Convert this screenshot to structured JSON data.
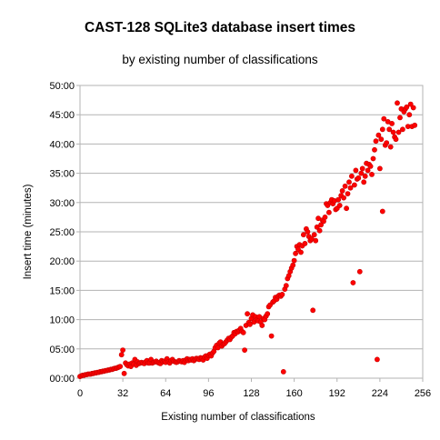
{
  "chart_data": {
    "type": "scatter",
    "title": "CAST-128 SQLite3 database insert times",
    "subtitle": "by existing number of classifications",
    "xlabel": "Existing number of classifications",
    "ylabel": "Insert time (minutes)",
    "xlim": [
      0,
      256
    ],
    "ylim": [
      0,
      50
    ],
    "x_ticks": [
      0,
      32,
      64,
      96,
      128,
      160,
      192,
      224,
      256
    ],
    "y_ticks": [
      0,
      5,
      10,
      15,
      20,
      25,
      30,
      35,
      40,
      45,
      50
    ],
    "y_tick_labels": [
      "00:00",
      "05:00",
      "10:00",
      "15:00",
      "20:00",
      "25:00",
      "30:00",
      "35:00",
      "40:00",
      "45:00",
      "50:00"
    ],
    "grid": "horizontal",
    "legend": "none",
    "marker_color": "#ff0000",
    "marker_edge_color": "#c80000",
    "series": [
      {
        "points": [
          [
            0,
            0.3
          ],
          [
            1,
            0.4
          ],
          [
            2,
            0.5
          ],
          [
            3,
            0.5
          ],
          [
            4,
            0.6
          ],
          [
            5,
            0.6
          ],
          [
            6,
            0.7
          ],
          [
            7,
            0.7
          ],
          [
            8,
            0.7
          ],
          [
            9,
            0.8
          ],
          [
            10,
            0.8
          ],
          [
            11,
            0.9
          ],
          [
            12,
            0.9
          ],
          [
            13,
            1.0
          ],
          [
            14,
            1.0
          ],
          [
            15,
            1.1
          ],
          [
            16,
            1.1
          ],
          [
            17,
            1.2
          ],
          [
            18,
            1.2
          ],
          [
            19,
            1.3
          ],
          [
            20,
            1.3
          ],
          [
            21,
            1.4
          ],
          [
            22,
            1.4
          ],
          [
            23,
            1.5
          ],
          [
            24,
            1.5
          ],
          [
            25,
            1.6
          ],
          [
            26,
            1.7
          ],
          [
            27,
            1.7
          ],
          [
            28,
            1.8
          ],
          [
            29,
            1.9
          ],
          [
            30,
            2.0
          ],
          [
            31,
            4.0
          ],
          [
            32,
            4.8
          ],
          [
            33,
            0.8
          ],
          [
            34,
            2.6
          ],
          [
            35,
            2.3
          ],
          [
            36,
            2.1
          ],
          [
            37,
            2.4
          ],
          [
            38,
            2.0
          ],
          [
            39,
            2.6
          ],
          [
            40,
            2.4
          ],
          [
            41,
            3.2
          ],
          [
            42,
            2.2
          ],
          [
            43,
            2.8
          ],
          [
            44,
            2.5
          ],
          [
            45,
            2.6
          ],
          [
            46,
            2.7
          ],
          [
            47,
            2.6
          ],
          [
            48,
            2.5
          ],
          [
            49,
            2.8
          ],
          [
            50,
            3.0
          ],
          [
            51,
            2.6
          ],
          [
            52,
            2.6
          ],
          [
            53,
            3.2
          ],
          [
            54,
            2.6
          ],
          [
            55,
            2.7
          ],
          [
            56,
            2.8
          ],
          [
            57,
            2.9
          ],
          [
            58,
            2.7
          ],
          [
            59,
            2.6
          ],
          [
            60,
            2.5
          ],
          [
            61,
            3.0
          ],
          [
            62,
            2.8
          ],
          [
            63,
            2.9
          ],
          [
            64,
            2.7
          ],
          [
            65,
            3.3
          ],
          [
            66,
            2.8
          ],
          [
            67,
            2.6
          ],
          [
            68,
            3.0
          ],
          [
            69,
            3.2
          ],
          [
            70,
            2.9
          ],
          [
            71,
            2.8
          ],
          [
            72,
            2.7
          ],
          [
            73,
            2.8
          ],
          [
            74,
            3.0
          ],
          [
            75,
            2.9
          ],
          [
            76,
            2.8
          ],
          [
            77,
            3.0
          ],
          [
            78,
            2.7
          ],
          [
            79,
            3.1
          ],
          [
            80,
            3.3
          ],
          [
            81,
            3.0
          ],
          [
            82,
            3.2
          ],
          [
            83,
            3.1
          ],
          [
            84,
            3.3
          ],
          [
            85,
            3.0
          ],
          [
            86,
            3.2
          ],
          [
            87,
            3.4
          ],
          [
            88,
            3.3
          ],
          [
            89,
            3.2
          ],
          [
            90,
            3.5
          ],
          [
            91,
            3.4
          ],
          [
            92,
            3.1
          ],
          [
            93,
            3.6
          ],
          [
            94,
            3.8
          ],
          [
            95,
            3.4
          ],
          [
            96,
            3.9
          ],
          [
            97,
            4.1
          ],
          [
            98,
            3.8
          ],
          [
            99,
            4.3
          ],
          [
            100,
            4.6
          ],
          [
            101,
            5.2
          ],
          [
            102,
            5.6
          ],
          [
            103,
            5.2
          ],
          [
            104,
            6.0
          ],
          [
            105,
            6.2
          ],
          [
            106,
            5.5
          ],
          [
            107,
            5.8
          ],
          [
            108,
            5.9
          ],
          [
            109,
            6.2
          ],
          [
            110,
            6.5
          ],
          [
            111,
            6.8
          ],
          [
            112,
            6.6
          ],
          [
            113,
            7.0
          ],
          [
            114,
            7.2
          ],
          [
            115,
            7.8
          ],
          [
            116,
            7.6
          ],
          [
            117,
            8.0
          ],
          [
            118,
            7.9
          ],
          [
            119,
            8.2
          ],
          [
            120,
            8.5
          ],
          [
            121,
            8.0
          ],
          [
            122,
            7.8
          ],
          [
            123,
            4.8
          ],
          [
            124,
            9.0
          ],
          [
            125,
            11.0
          ],
          [
            126,
            9.5
          ],
          [
            127,
            9.2
          ],
          [
            128,
            10.2
          ],
          [
            129,
            10.8
          ],
          [
            130,
            9.6
          ],
          [
            131,
            10.5
          ],
          [
            132,
            10.0
          ],
          [
            133,
            9.8
          ],
          [
            134,
            10.5
          ],
          [
            135,
            9.6
          ],
          [
            136,
            9.0
          ],
          [
            137,
            10.2
          ],
          [
            138,
            10.0
          ],
          [
            139,
            10.6
          ],
          [
            140,
            11.0
          ],
          [
            141,
            12.2
          ],
          [
            142,
            12.5
          ],
          [
            143,
            7.2
          ],
          [
            144,
            13.0
          ],
          [
            145,
            13.2
          ],
          [
            146,
            13.8
          ],
          [
            147,
            13.5
          ],
          [
            148,
            14.0
          ],
          [
            149,
            14.2
          ],
          [
            150,
            14.0
          ],
          [
            151,
            14.3
          ],
          [
            152,
            1.1
          ],
          [
            153,
            15.2
          ],
          [
            154,
            15.8
          ],
          [
            155,
            17.0
          ],
          [
            156,
            17.5
          ],
          [
            157,
            18.2
          ],
          [
            158,
            18.8
          ],
          [
            159,
            19.3
          ],
          [
            160,
            20.1
          ],
          [
            161,
            21.3
          ],
          [
            162,
            22.5
          ],
          [
            163,
            22.0
          ],
          [
            164,
            22.8
          ],
          [
            165,
            21.5
          ],
          [
            166,
            22.6
          ],
          [
            167,
            24.5
          ],
          [
            168,
            23.0
          ],
          [
            169,
            25.5
          ],
          [
            170,
            25.0
          ],
          [
            171,
            24.2
          ],
          [
            172,
            23.5
          ],
          [
            173,
            23.8
          ],
          [
            174,
            11.6
          ],
          [
            175,
            24.5
          ],
          [
            176,
            23.5
          ],
          [
            177,
            25.8
          ],
          [
            178,
            27.3
          ],
          [
            179,
            25.2
          ],
          [
            180,
            26.2
          ],
          [
            181,
            27.0
          ],
          [
            182,
            26.8
          ],
          [
            183,
            27.5
          ],
          [
            184,
            29.8
          ],
          [
            185,
            29.5
          ],
          [
            186,
            28.3
          ],
          [
            187,
            30.0
          ],
          [
            188,
            30.5
          ],
          [
            189,
            29.8
          ],
          [
            190,
            30.3
          ],
          [
            191,
            28.8
          ],
          [
            192,
            29.0
          ],
          [
            193,
            30.5
          ],
          [
            194,
            29.5
          ],
          [
            195,
            31.2
          ],
          [
            196,
            32.0
          ],
          [
            197,
            30.8
          ],
          [
            198,
            32.8
          ],
          [
            199,
            29.0
          ],
          [
            200,
            31.5
          ],
          [
            201,
            33.5
          ],
          [
            202,
            32.5
          ],
          [
            203,
            34.5
          ],
          [
            204,
            16.3
          ],
          [
            205,
            33.0
          ],
          [
            206,
            35.5
          ],
          [
            207,
            34.0
          ],
          [
            208,
            34.2
          ],
          [
            209,
            18.2
          ],
          [
            210,
            35.0
          ],
          [
            211,
            35.8
          ],
          [
            212,
            33.5
          ],
          [
            213,
            34.5
          ],
          [
            214,
            36.7
          ],
          [
            215,
            35.5
          ],
          [
            216,
            36.5
          ],
          [
            217,
            36.2
          ],
          [
            218,
            34.8
          ],
          [
            219,
            37.5
          ],
          [
            220,
            39.0
          ],
          [
            221,
            40.5
          ],
          [
            222,
            3.2
          ],
          [
            223,
            41.5
          ],
          [
            224,
            35.8
          ],
          [
            225,
            40.8
          ],
          [
            226,
            42.5
          ],
          [
            227,
            44.3
          ],
          [
            228,
            39.8
          ],
          [
            229,
            40.2
          ],
          [
            230,
            43.8
          ],
          [
            231,
            42.5
          ],
          [
            232,
            39.5
          ],
          [
            233,
            43.5
          ],
          [
            234,
            42.0
          ],
          [
            235,
            41.2
          ],
          [
            236,
            40.8
          ],
          [
            237,
            47.0
          ],
          [
            238,
            42.0
          ],
          [
            239,
            44.5
          ],
          [
            240,
            46.0
          ],
          [
            241,
            42.5
          ],
          [
            242,
            45.5
          ],
          [
            243,
            46.0
          ],
          [
            244,
            46.3
          ],
          [
            245,
            43.0
          ],
          [
            246,
            45.0
          ],
          [
            247,
            46.8
          ],
          [
            248,
            43.0
          ],
          [
            249,
            46.2
          ],
          [
            250,
            43.2
          ],
          [
            226,
            28.5
          ]
        ]
      }
    ]
  }
}
